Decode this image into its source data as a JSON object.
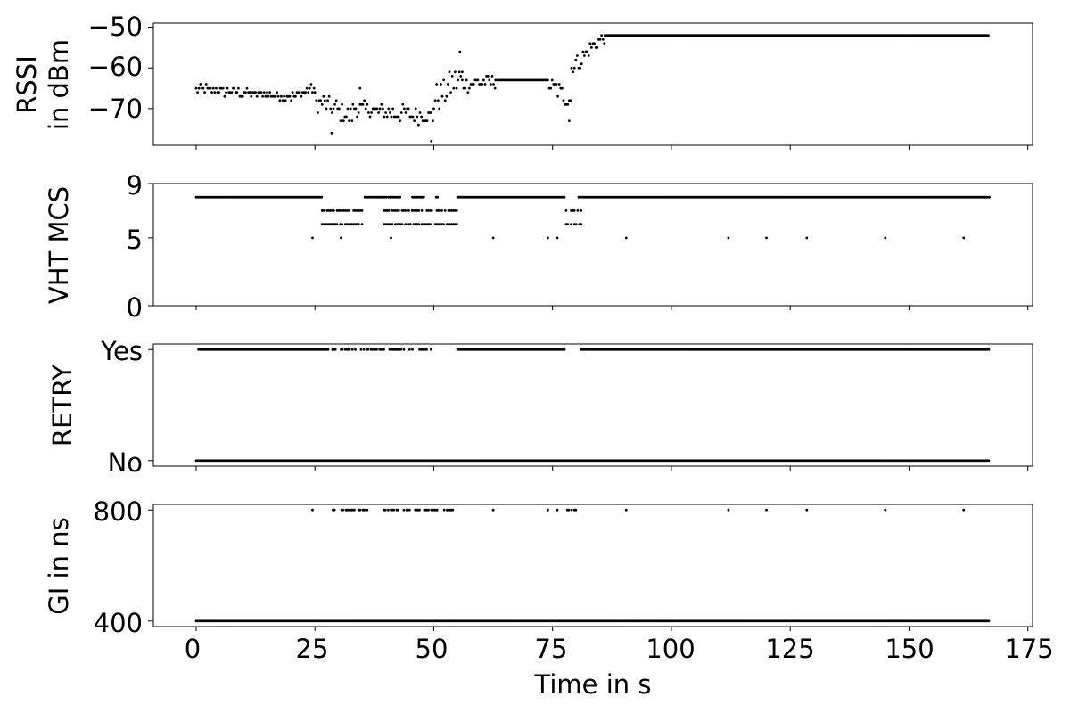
{
  "colors": {
    "points": "#000000",
    "frame": "#000000",
    "background": "#ffffff"
  },
  "chart_data": {
    "type": "scatter",
    "shared_x": true,
    "xlabel": "Time in s",
    "xlim": [
      -9,
      176
    ],
    "x_ticks": [
      0,
      25,
      50,
      75,
      100,
      125,
      150,
      175
    ],
    "x_tick_labels": [
      "0",
      "25",
      "50",
      "75",
      "100",
      "125",
      "150",
      "175"
    ],
    "grid": false,
    "legend": "none",
    "panels": [
      {
        "id": "rssi",
        "ylabel_lines": [
          "RSSI",
          "in dBm"
        ],
        "ylim": [
          -79,
          -49
        ],
        "y_ticks": [
          -50,
          -60,
          -70
        ],
        "y_tick_labels": [
          "−50",
          "−60",
          "−70"
        ],
        "segments": [
          {
            "t0": 0,
            "t1": 8,
            "v0": -65,
            "v1": -66,
            "noise": 1.2
          },
          {
            "t0": 8,
            "t1": 20,
            "v0": -66,
            "v1": -67,
            "noise": 1.0
          },
          {
            "t0": 20,
            "t1": 25,
            "v0": -67,
            "v1": -65,
            "noise": 1.2
          },
          {
            "t0": 25,
            "t1": 33,
            "v0": -68,
            "v1": -72,
            "noise": 2.5
          },
          {
            "t0": 33,
            "t1": 50,
            "v0": -70,
            "v1": -72,
            "noise": 2.0
          },
          {
            "t0": 50,
            "t1": 56,
            "v0": -68,
            "v1": -62,
            "noise": 3.5
          },
          {
            "t0": 56,
            "t1": 63,
            "v0": -64,
            "v1": -63,
            "noise": 2.0
          },
          {
            "t0": 63,
            "t1": 74,
            "v0": -63,
            "v1": -63,
            "noise": 0.4
          },
          {
            "t0": 74,
            "t1": 79,
            "v0": -64,
            "v1": -68,
            "noise": 2.5
          },
          {
            "t0": 79,
            "t1": 86,
            "v0": -60,
            "v1": -52,
            "noise": 2.0
          },
          {
            "t0": 86,
            "t1": 167,
            "v0": -52,
            "v1": -52,
            "noise": 0.5
          }
        ],
        "outliers": [
          {
            "t": 28.5,
            "v": -76
          },
          {
            "t": 49.5,
            "v": -78
          },
          {
            "t": 55.5,
            "v": -56
          },
          {
            "t": 78.5,
            "v": -73
          },
          {
            "t": 34.5,
            "v": -65
          }
        ]
      },
      {
        "id": "mcs",
        "ylabel_lines": [
          "VHT MCS"
        ],
        "ylim": [
          0,
          9
        ],
        "y_ticks": [
          9,
          5,
          0
        ],
        "y_tick_labels": [
          "9",
          "5",
          "0"
        ],
        "baseline_value": 8,
        "baseline_ranges": [
          [
            0,
            26.5
          ],
          [
            35.5,
            40
          ],
          [
            40.5,
            43
          ],
          [
            45.5,
            48
          ],
          [
            50.5,
            51
          ],
          [
            55,
            77.5
          ],
          [
            80.5,
            167
          ]
        ],
        "clusters": [
          {
            "t0": 26.5,
            "t1": 35,
            "values": [
              7,
              6
            ]
          },
          {
            "t0": 39.5,
            "t1": 47,
            "values": [
              7,
              6
            ]
          },
          {
            "t0": 47.5,
            "t1": 55,
            "values": [
              7,
              6
            ]
          },
          {
            "t0": 77.5,
            "t1": 81,
            "values": [
              7,
              6
            ]
          }
        ],
        "isolated": [
          {
            "t": 24.5,
            "v": 5
          },
          {
            "t": 30.5,
            "v": 5
          },
          {
            "t": 41,
            "v": 5
          },
          {
            "t": 62.5,
            "v": 5
          },
          {
            "t": 74,
            "v": 5
          },
          {
            "t": 76,
            "v": 5
          },
          {
            "t": 90.5,
            "v": 5
          },
          {
            "t": 112,
            "v": 5
          },
          {
            "t": 120,
            "v": 5
          },
          {
            "t": 128.5,
            "v": 5
          },
          {
            "t": 145,
            "v": 5
          },
          {
            "t": 161.5,
            "v": 5
          }
        ]
      },
      {
        "id": "retry",
        "ylabel_lines": [
          "RETRY"
        ],
        "ylim": [
          -0.05,
          1.05
        ],
        "y_ticks": [
          1,
          0
        ],
        "y_tick_labels": [
          "Yes",
          "No"
        ],
        "rows": [
          {
            "value": 1,
            "ranges": [
              [
                0.5,
                27.5
              ],
              [
                27.5,
                35,
                "sparse"
              ],
              [
                35,
                50,
                "sparse"
              ],
              [
                55,
                77.5
              ],
              [
                81,
                167
              ]
            ]
          },
          {
            "value": 0,
            "ranges": [
              [
                0,
                167
              ]
            ]
          }
        ]
      },
      {
        "id": "gi",
        "ylabel_lines": [
          "GI in ns"
        ],
        "ylim": [
          380,
          820
        ],
        "y_ticks": [
          800,
          400
        ],
        "y_tick_labels": [
          "800",
          "400"
        ],
        "rows": [
          {
            "value": 800,
            "ranges": [
              [
                28.5,
                36,
                "sparse"
              ],
              [
                39.5,
                47.5,
                "sparse"
              ],
              [
                48,
                55,
                "sparse"
              ],
              [
                77.5,
                81,
                "sparse"
              ]
            ]
          },
          {
            "value": 400,
            "ranges": [
              [
                0,
                167
              ]
            ]
          }
        ],
        "isolated": [
          {
            "t": 24.5,
            "v": 800
          },
          {
            "t": 62.5,
            "v": 800
          },
          {
            "t": 74,
            "v": 800
          },
          {
            "t": 76,
            "v": 800
          },
          {
            "t": 90.5,
            "v": 800
          },
          {
            "t": 112,
            "v": 800
          },
          {
            "t": 120,
            "v": 800
          },
          {
            "t": 128.5,
            "v": 800
          },
          {
            "t": 145,
            "v": 800
          },
          {
            "t": 161.5,
            "v": 800
          }
        ]
      }
    ]
  }
}
